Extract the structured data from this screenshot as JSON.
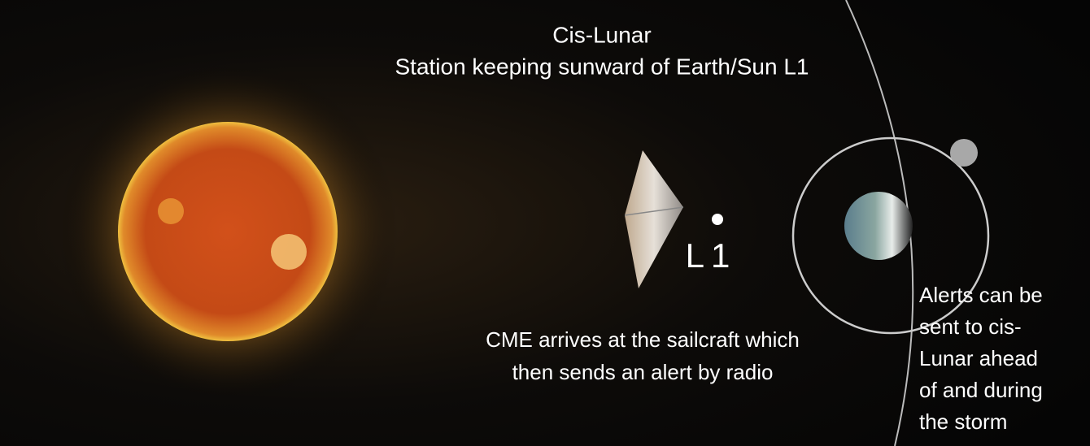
{
  "title": {
    "lines": [
      "Cis-Lunar",
      "Station keeping sunward of Earth/Sun L1"
    ]
  },
  "point_label": "L1",
  "sail_caption": {
    "lines": [
      "CME arrives at the sailcraft which",
      "then sends an alert by radio"
    ]
  },
  "alert_caption": {
    "lines": [
      "Alerts can be",
      "sent to cis-",
      "Lunar ahead",
      "of and during",
      "the storm"
    ]
  }
}
